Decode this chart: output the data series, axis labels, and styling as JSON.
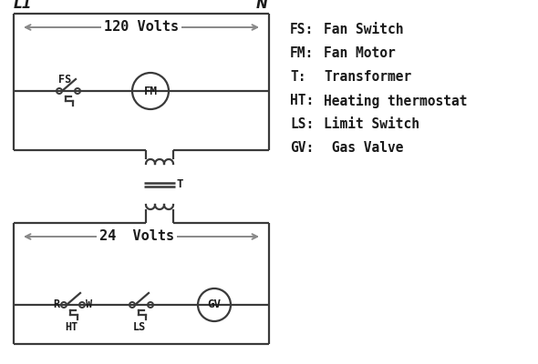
{
  "bg_color": "#ffffff",
  "line_color": "#3a3a3a",
  "arrow_color": "#888888",
  "text_color": "#1a1a1a",
  "legend_items": [
    [
      "FS:",
      "Fan Switch"
    ],
    [
      "FM:",
      "Fan Motor"
    ],
    [
      "T:",
      "Transformer"
    ],
    [
      "HT:",
      "Heating thermostat"
    ],
    [
      "LS:",
      "Limit Switch"
    ],
    [
      "GV:",
      " Gas Valve"
    ]
  ],
  "L1_label": "L1",
  "N_label": "N",
  "v120_label": "120 Volts",
  "v24_label": "24  Volts",
  "FS_label": "FS",
  "FM_label": "FM",
  "T_label": "T",
  "R_label": "R",
  "W_label": "W",
  "HT_label": "HT",
  "LS_label": "LS",
  "GV_label": "GV"
}
